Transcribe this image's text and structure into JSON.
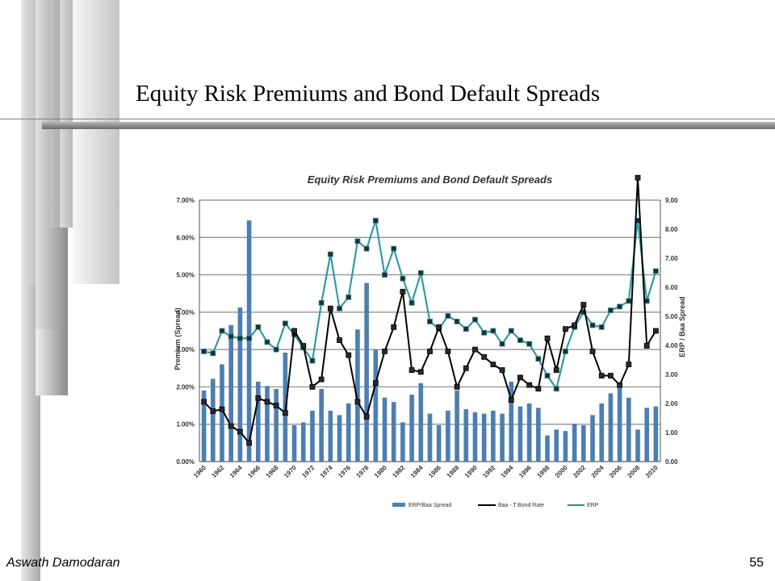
{
  "slide": {
    "title": "Equity Risk Premiums and Bond Default Spreads",
    "footer_author": "Aswath Damodaran",
    "page_number": "55"
  },
  "colors": {
    "bars": "#4a7fb5",
    "baa_line": "#000000",
    "erp_line": "#1a9aa0",
    "grid": "#888888"
  },
  "chart_data": {
    "type": "bar+line",
    "title": "Equity Risk Premiums  and Bond Default Spreads",
    "ylabel_left": "Premium (Spread)",
    "ylabel_right": "ERP / Baa Spread",
    "ylim_left": [
      0,
      7
    ],
    "ylim_right": [
      0,
      9
    ],
    "left_ticks": [
      "0.00%",
      "1.00%",
      "2.00%",
      "3.00%",
      "4.00%",
      "5.00%",
      "6.00%",
      "7.00%"
    ],
    "right_ticks": [
      "0.00",
      "1.00",
      "2.00",
      "3.00",
      "4.00",
      "5.00",
      "6.00",
      "7.00",
      "8.00",
      "9.00"
    ],
    "x_tick_labels": [
      "1960",
      "1962",
      "1964",
      "1966",
      "1968",
      "1970",
      "1972",
      "1974",
      "1976",
      "1978",
      "1980",
      "1982",
      "1984",
      "1986",
      "1988",
      "1990",
      "1992",
      "1994",
      "1996",
      "1998",
      "2000",
      "2002",
      "2004",
      "2006",
      "2008",
      "2010"
    ],
    "x": [
      1960,
      1961,
      1962,
      1963,
      1964,
      1965,
      1966,
      1967,
      1968,
      1969,
      1970,
      1971,
      1972,
      1973,
      1974,
      1975,
      1976,
      1977,
      1978,
      1979,
      1980,
      1981,
      1982,
      1983,
      1984,
      1985,
      1986,
      1987,
      1988,
      1989,
      1990,
      1991,
      1992,
      1993,
      1994,
      1995,
      1996,
      1997,
      1998,
      1999,
      2000,
      2001,
      2002,
      2003,
      2004,
      2005,
      2006,
      2007,
      2008,
      2009,
      2010
    ],
    "legend_position": "bottom",
    "grid": true,
    "series": [
      {
        "name": "ERP/Baa Spread",
        "type": "bar",
        "axis": "right",
        "values": [
          2.45,
          2.85,
          3.35,
          4.7,
          5.3,
          8.3,
          2.75,
          2.6,
          2.5,
          3.75,
          1.25,
          1.35,
          1.75,
          2.5,
          1.75,
          1.6,
          2.0,
          4.55,
          6.15,
          3.85,
          2.2,
          2.05,
          1.35,
          2.3,
          2.7,
          1.65,
          1.25,
          1.75,
          2.45,
          1.8,
          1.7,
          1.65,
          1.75,
          1.65,
          2.75,
          1.9,
          2.0,
          1.85,
          0.9,
          1.1,
          1.05,
          1.3,
          1.25,
          1.6,
          2.0,
          2.35,
          2.6,
          2.2,
          1.1,
          1.85,
          1.9
        ]
      },
      {
        "name": "Baa - T.Bond Rate",
        "type": "line",
        "axis": "left",
        "values": [
          1.6,
          1.35,
          1.4,
          0.95,
          0.8,
          0.5,
          1.7,
          1.6,
          1.5,
          1.3,
          3.5,
          3.1,
          2.0,
          2.2,
          4.1,
          3.25,
          2.85,
          1.6,
          1.2,
          2.1,
          2.95,
          3.6,
          4.55,
          2.45,
          2.4,
          2.95,
          3.6,
          2.95,
          2.0,
          2.5,
          3.0,
          2.8,
          2.6,
          2.45,
          1.65,
          2.25,
          2.05,
          1.95,
          3.3,
          2.45,
          3.55,
          3.65,
          4.2,
          2.95,
          2.3,
          2.3,
          2.05,
          2.6,
          7.6,
          3.1,
          3.5
        ]
      },
      {
        "name": "ERP",
        "type": "line",
        "axis": "left",
        "values": [
          2.95,
          2.9,
          3.5,
          3.35,
          3.3,
          3.3,
          3.6,
          3.2,
          3.0,
          3.7,
          3.4,
          3.05,
          2.7,
          4.25,
          5.55,
          4.1,
          4.4,
          5.9,
          5.7,
          6.45,
          5.0,
          5.7,
          4.9,
          4.25,
          5.05,
          3.75,
          3.55,
          3.9,
          3.75,
          3.55,
          3.8,
          3.45,
          3.5,
          3.15,
          3.5,
          3.25,
          3.15,
          2.75,
          2.3,
          1.95,
          2.95,
          3.6,
          4.0,
          3.65,
          3.6,
          4.05,
          4.15,
          4.3,
          6.45,
          4.3,
          5.1
        ]
      }
    ]
  }
}
